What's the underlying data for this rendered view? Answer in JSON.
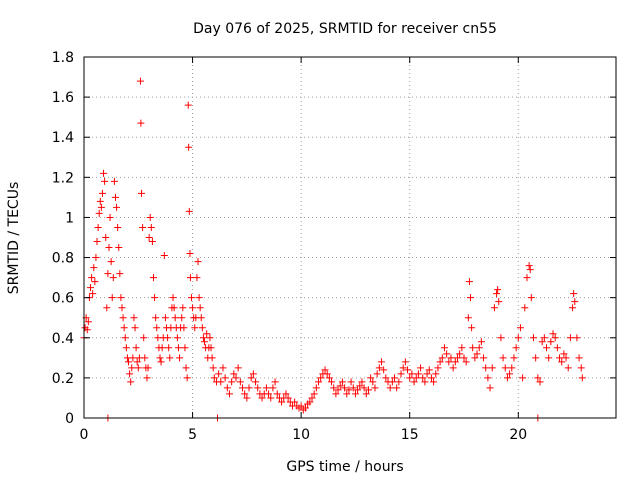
{
  "chart_data": {
    "type": "scatter",
    "title": "Day 076 of 2025, SRMTID for receiver cn55",
    "xlabel": "GPS time / hours",
    "ylabel": "SRMTID / TECUs",
    "xlim": [
      0,
      24.5
    ],
    "ylim": [
      0,
      1.8
    ],
    "x_ticks": [
      0,
      5,
      10,
      15,
      20
    ],
    "x_tick_labels": [
      "0",
      "5",
      "10",
      "15",
      "20"
    ],
    "y_ticks": [
      0,
      0.2,
      0.4,
      0.6,
      0.8,
      1,
      1.2,
      1.4,
      1.6,
      1.8
    ],
    "y_tick_labels": [
      "0",
      "0.2",
      "0.4",
      "0.6",
      "0.8",
      "1",
      "1.2",
      "1.4",
      "1.6",
      "1.8"
    ],
    "grid": true,
    "marker": "+",
    "marker_color": "#ff0000",
    "series": [
      {
        "name": "SRMTID",
        "points": [
          [
            0.0,
            0.4
          ],
          [
            0.05,
            0.45
          ],
          [
            0.1,
            0.5
          ],
          [
            0.15,
            0.44
          ],
          [
            0.2,
            0.48
          ],
          [
            0.25,
            0.6
          ],
          [
            0.3,
            0.65
          ],
          [
            0.35,
            0.7
          ],
          [
            0.4,
            0.62
          ],
          [
            0.45,
            0.75
          ],
          [
            0.5,
            0.68
          ],
          [
            0.55,
            0.8
          ],
          [
            0.6,
            0.88
          ],
          [
            0.65,
            0.95
          ],
          [
            0.7,
            1.02
          ],
          [
            0.75,
            1.08
          ],
          [
            0.8,
            1.05
          ],
          [
            0.85,
            1.12
          ],
          [
            0.9,
            1.22
          ],
          [
            0.95,
            1.18
          ],
          [
            1.0,
            0.9
          ],
          [
            1.05,
            0.55
          ],
          [
            1.1,
            0.72
          ],
          [
            1.15,
            0.85
          ],
          [
            1.2,
            1.0
          ],
          [
            1.25,
            0.78
          ],
          [
            1.3,
            0.6
          ],
          [
            1.35,
            0.7
          ],
          [
            1.4,
            1.18
          ],
          [
            1.45,
            1.1
          ],
          [
            1.5,
            1.05
          ],
          [
            1.55,
            0.95
          ],
          [
            1.6,
            0.85
          ],
          [
            1.65,
            0.72
          ],
          [
            1.7,
            0.6
          ],
          [
            1.75,
            0.55
          ],
          [
            1.8,
            0.5
          ],
          [
            1.85,
            0.45
          ],
          [
            1.9,
            0.4
          ],
          [
            1.95,
            0.35
          ],
          [
            2.0,
            0.3
          ],
          [
            2.05,
            0.28
          ],
          [
            2.1,
            0.22
          ],
          [
            2.15,
            0.18
          ],
          [
            2.2,
            0.25
          ],
          [
            2.25,
            0.3
          ],
          [
            2.3,
            0.5
          ],
          [
            2.35,
            0.45
          ],
          [
            2.4,
            0.35
          ],
          [
            2.45,
            0.28
          ],
          [
            2.5,
            0.25
          ],
          [
            2.55,
            0.3
          ],
          [
            2.6,
            1.68
          ],
          [
            2.62,
            1.47
          ],
          [
            2.65,
            1.12
          ],
          [
            2.7,
            0.95
          ],
          [
            2.75,
            0.4
          ],
          [
            2.8,
            0.3
          ],
          [
            2.85,
            0.25
          ],
          [
            2.9,
            0.2
          ],
          [
            2.95,
            0.25
          ],
          [
            3.0,
            0.9
          ],
          [
            3.05,
            1.0
          ],
          [
            3.1,
            0.95
          ],
          [
            3.15,
            0.88
          ],
          [
            3.2,
            0.7
          ],
          [
            3.25,
            0.6
          ],
          [
            3.3,
            0.5
          ],
          [
            3.35,
            0.45
          ],
          [
            3.4,
            0.4
          ],
          [
            3.45,
            0.35
          ],
          [
            3.5,
            0.3
          ],
          [
            3.55,
            0.28
          ],
          [
            3.6,
            0.35
          ],
          [
            3.65,
            0.4
          ],
          [
            3.7,
            0.81
          ],
          [
            3.75,
            0.5
          ],
          [
            3.8,
            0.45
          ],
          [
            3.85,
            0.4
          ],
          [
            3.9,
            0.35
          ],
          [
            3.95,
            0.3
          ],
          [
            4.0,
            0.45
          ],
          [
            4.05,
            0.55
          ],
          [
            4.1,
            0.6
          ],
          [
            4.15,
            0.55
          ],
          [
            4.2,
            0.5
          ],
          [
            4.25,
            0.45
          ],
          [
            4.3,
            0.4
          ],
          [
            4.35,
            0.35
          ],
          [
            4.4,
            0.3
          ],
          [
            4.45,
            0.45
          ],
          [
            4.5,
            0.5
          ],
          [
            4.55,
            0.55
          ],
          [
            4.6,
            0.45
          ],
          [
            4.65,
            0.35
          ],
          [
            4.7,
            0.25
          ],
          [
            4.75,
            0.2
          ],
          [
            4.8,
            1.56
          ],
          [
            4.82,
            1.35
          ],
          [
            4.85,
            1.03
          ],
          [
            4.88,
            0.82
          ],
          [
            4.9,
            0.7
          ],
          [
            4.95,
            0.6
          ],
          [
            5.0,
            0.55
          ],
          [
            5.05,
            0.5
          ],
          [
            5.1,
            0.45
          ],
          [
            5.15,
            0.5
          ],
          [
            5.2,
            0.7
          ],
          [
            5.25,
            0.78
          ],
          [
            5.3,
            0.6
          ],
          [
            5.35,
            0.55
          ],
          [
            5.4,
            0.5
          ],
          [
            5.45,
            0.45
          ],
          [
            5.5,
            0.4
          ],
          [
            5.55,
            0.38
          ],
          [
            5.6,
            0.35
          ],
          [
            5.65,
            0.42
          ],
          [
            5.7,
            0.3
          ],
          [
            5.75,
            0.35
          ],
          [
            5.8,
            0.4
          ],
          [
            5.85,
            0.35
          ],
          [
            5.9,
            0.3
          ],
          [
            5.95,
            0.25
          ],
          [
            6.0,
            0.2
          ],
          [
            6.1,
            0.18
          ],
          [
            6.2,
            0.22
          ],
          [
            6.3,
            0.18
          ],
          [
            6.4,
            0.25
          ],
          [
            6.5,
            0.2
          ],
          [
            6.6,
            0.15
          ],
          [
            6.7,
            0.12
          ],
          [
            6.8,
            0.18
          ],
          [
            6.9,
            0.22
          ],
          [
            7.0,
            0.2
          ],
          [
            7.1,
            0.25
          ],
          [
            7.2,
            0.18
          ],
          [
            7.3,
            0.15
          ],
          [
            7.4,
            0.12
          ],
          [
            7.5,
            0.1
          ],
          [
            7.6,
            0.15
          ],
          [
            7.7,
            0.2
          ],
          [
            7.8,
            0.22
          ],
          [
            7.9,
            0.18
          ],
          [
            8.0,
            0.15
          ],
          [
            8.1,
            0.12
          ],
          [
            8.2,
            0.1
          ],
          [
            8.3,
            0.12
          ],
          [
            8.4,
            0.15
          ],
          [
            8.5,
            0.12
          ],
          [
            8.6,
            0.1
          ],
          [
            8.7,
            0.15
          ],
          [
            8.8,
            0.18
          ],
          [
            8.9,
            0.12
          ],
          [
            9.0,
            0.1
          ],
          [
            9.1,
            0.08
          ],
          [
            9.2,
            0.1
          ],
          [
            9.3,
            0.12
          ],
          [
            9.4,
            0.1
          ],
          [
            9.5,
            0.08
          ],
          [
            9.6,
            0.06
          ],
          [
            9.7,
            0.08
          ],
          [
            9.8,
            0.06
          ],
          [
            9.9,
            0.05
          ],
          [
            10.0,
            0.06
          ],
          [
            10.1,
            0.04
          ],
          [
            10.2,
            0.05
          ],
          [
            10.3,
            0.07
          ],
          [
            10.4,
            0.08
          ],
          [
            10.5,
            0.1
          ],
          [
            10.6,
            0.12
          ],
          [
            10.7,
            0.15
          ],
          [
            10.8,
            0.18
          ],
          [
            10.9,
            0.2
          ],
          [
            11.0,
            0.22
          ],
          [
            11.1,
            0.24
          ],
          [
            11.2,
            0.22
          ],
          [
            11.3,
            0.2
          ],
          [
            11.4,
            0.18
          ],
          [
            11.5,
            0.15
          ],
          [
            11.6,
            0.12
          ],
          [
            11.7,
            0.14
          ],
          [
            11.8,
            0.16
          ],
          [
            11.9,
            0.18
          ],
          [
            12.0,
            0.15
          ],
          [
            12.1,
            0.12
          ],
          [
            12.2,
            0.14
          ],
          [
            12.3,
            0.18
          ],
          [
            12.4,
            0.15
          ],
          [
            12.5,
            0.12
          ],
          [
            12.6,
            0.14
          ],
          [
            12.7,
            0.16
          ],
          [
            12.8,
            0.18
          ],
          [
            12.9,
            0.15
          ],
          [
            13.0,
            0.12
          ],
          [
            13.1,
            0.14
          ],
          [
            13.2,
            0.2
          ],
          [
            13.3,
            0.18
          ],
          [
            13.4,
            0.15
          ],
          [
            13.5,
            0.22
          ],
          [
            13.6,
            0.25
          ],
          [
            13.7,
            0.28
          ],
          [
            13.8,
            0.24
          ],
          [
            13.9,
            0.2
          ],
          [
            14.0,
            0.18
          ],
          [
            14.1,
            0.15
          ],
          [
            14.2,
            0.18
          ],
          [
            14.3,
            0.2
          ],
          [
            14.4,
            0.15
          ],
          [
            14.5,
            0.18
          ],
          [
            14.6,
            0.22
          ],
          [
            14.7,
            0.25
          ],
          [
            14.8,
            0.28
          ],
          [
            14.9,
            0.24
          ],
          [
            15.0,
            0.2
          ],
          [
            15.1,
            0.22
          ],
          [
            15.2,
            0.18
          ],
          [
            15.3,
            0.2
          ],
          [
            15.4,
            0.22
          ],
          [
            15.5,
            0.25
          ],
          [
            15.6,
            0.2
          ],
          [
            15.7,
            0.18
          ],
          [
            15.8,
            0.22
          ],
          [
            15.9,
            0.24
          ],
          [
            16.0,
            0.2
          ],
          [
            16.1,
            0.18
          ],
          [
            16.2,
            0.22
          ],
          [
            16.3,
            0.25
          ],
          [
            16.4,
            0.28
          ],
          [
            16.5,
            0.3
          ],
          [
            16.6,
            0.35
          ],
          [
            16.7,
            0.32
          ],
          [
            16.8,
            0.28
          ],
          [
            16.9,
            0.3
          ],
          [
            17.0,
            0.25
          ],
          [
            17.1,
            0.28
          ],
          [
            17.2,
            0.3
          ],
          [
            17.3,
            0.32
          ],
          [
            17.4,
            0.35
          ],
          [
            17.5,
            0.3
          ],
          [
            17.6,
            0.28
          ],
          [
            17.7,
            0.5
          ],
          [
            17.75,
            0.68
          ],
          [
            17.8,
            0.6
          ],
          [
            17.85,
            0.45
          ],
          [
            17.9,
            0.35
          ],
          [
            18.0,
            0.3
          ],
          [
            18.1,
            0.32
          ],
          [
            18.2,
            0.35
          ],
          [
            18.3,
            0.38
          ],
          [
            18.4,
            0.3
          ],
          [
            18.5,
            0.25
          ],
          [
            18.6,
            0.2
          ],
          [
            18.7,
            0.15
          ],
          [
            18.8,
            0.25
          ],
          [
            18.9,
            0.55
          ],
          [
            19.0,
            0.62
          ],
          [
            19.05,
            0.64
          ],
          [
            19.1,
            0.58
          ],
          [
            19.2,
            0.4
          ],
          [
            19.3,
            0.3
          ],
          [
            19.4,
            0.25
          ],
          [
            19.5,
            0.2
          ],
          [
            19.6,
            0.22
          ],
          [
            19.7,
            0.25
          ],
          [
            19.8,
            0.3
          ],
          [
            19.9,
            0.35
          ],
          [
            20.0,
            0.4
          ],
          [
            20.1,
            0.45
          ],
          [
            20.2,
            0.2
          ],
          [
            20.3,
            0.55
          ],
          [
            20.4,
            0.7
          ],
          [
            20.5,
            0.76
          ],
          [
            20.55,
            0.74
          ],
          [
            20.6,
            0.6
          ],
          [
            20.7,
            0.4
          ],
          [
            20.8,
            0.3
          ],
          [
            20.9,
            0.2
          ],
          [
            21.0,
            0.18
          ],
          [
            21.1,
            0.38
          ],
          [
            21.2,
            0.4
          ],
          [
            21.3,
            0.35
          ],
          [
            21.4,
            0.3
          ],
          [
            21.5,
            0.38
          ],
          [
            21.6,
            0.42
          ],
          [
            21.7,
            0.4
          ],
          [
            21.8,
            0.35
          ],
          [
            21.9,
            0.3
          ],
          [
            22.0,
            0.28
          ],
          [
            22.1,
            0.32
          ],
          [
            22.2,
            0.3
          ],
          [
            22.3,
            0.25
          ],
          [
            22.4,
            0.4
          ],
          [
            22.5,
            0.55
          ],
          [
            22.55,
            0.62
          ],
          [
            22.6,
            0.58
          ],
          [
            22.7,
            0.4
          ],
          [
            22.8,
            0.3
          ],
          [
            22.9,
            0.25
          ],
          [
            22.95,
            0.2
          ],
          [
            1.1,
            0.0
          ],
          [
            6.15,
            0.0
          ],
          [
            20.9,
            0.0
          ]
        ]
      }
    ]
  }
}
